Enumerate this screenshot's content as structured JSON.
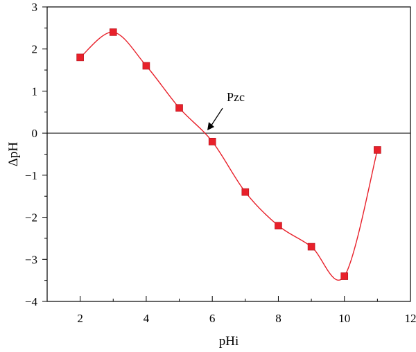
{
  "chart_data": {
    "type": "scatter",
    "title": "",
    "xlabel": "pHi",
    "ylabel": "ΔpH",
    "xlim": [
      1,
      12
    ],
    "ylim": [
      -4,
      3
    ],
    "xticks": [
      2,
      4,
      6,
      8,
      10,
      12
    ],
    "yticks": [
      3,
      2,
      1,
      0,
      -1,
      -2,
      -3,
      -4
    ],
    "ytick_labels": [
      "3",
      "2",
      "1",
      "0",
      "−1",
      "−2",
      "−3",
      "−4"
    ],
    "grid": false,
    "zero_line": true,
    "series": [
      {
        "x": [
          2,
          3,
          4,
          5,
          6,
          7,
          8,
          9,
          10,
          11
        ],
        "y": [
          1.8,
          2.4,
          1.6,
          0.6,
          -0.2,
          -1.4,
          -2.2,
          -2.7,
          -3.4,
          -0.4
        ],
        "marker": "square",
        "color": "#e8202a",
        "line": "smooth"
      }
    ],
    "annotations": [
      {
        "text": "Pzc",
        "x": 5.85,
        "y": 0.0
      }
    ]
  }
}
